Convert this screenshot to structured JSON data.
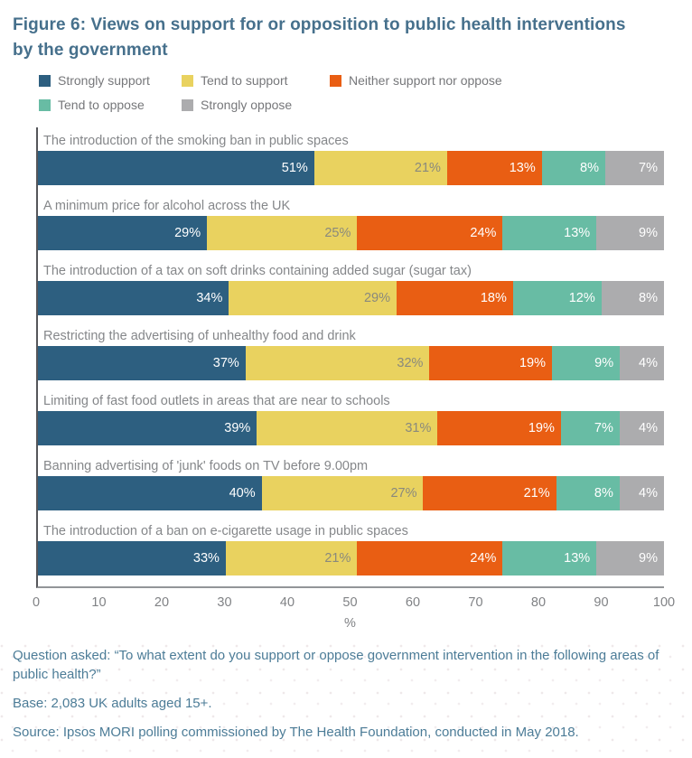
{
  "figure": {
    "title_lines": [
      "Figure 6: Views on support for or opposition to public health interventions",
      "by the government"
    ]
  },
  "chart_data": {
    "type": "bar",
    "stacked": true,
    "orientation": "horizontal",
    "title": "Figure 6: Views on support for or opposition to public health interventions by the government",
    "categories": [
      "The introduction of the smoking ban in public spaces",
      "A minimum price for alcohol across the UK",
      "The introduction of a tax on soft drinks containing added sugar (sugar tax)",
      "Restricting the advertising of unhealthy food and drink",
      "Limiting of fast food outlets in areas that are near to schools",
      "Banning advertising of 'junk' foods on TV before 9.00pm",
      "The introduction of a ban on e-cigarette usage in public spaces"
    ],
    "series": [
      {
        "name": "Strongly support",
        "color": "#2D5F80",
        "label_color": "#FFFFFF",
        "values": [
          51,
          29,
          34,
          37,
          39,
          40,
          33
        ]
      },
      {
        "name": "Tend to support",
        "color": "#E9D25F",
        "label_color": "#89897D",
        "values": [
          21,
          25,
          29,
          32,
          31,
          27,
          21
        ]
      },
      {
        "name": "Neither support nor oppose",
        "color": "#E95E13",
        "label_color": "#FFFFFF",
        "values": [
          13,
          24,
          18,
          19,
          19,
          21,
          24
        ]
      },
      {
        "name": "Tend to oppose",
        "color": "#68BCA4",
        "label_color": "#FFFFFF",
        "values": [
          8,
          13,
          12,
          9,
          7,
          8,
          13
        ]
      },
      {
        "name": "Strongly oppose",
        "color": "#ACACAE",
        "label_color": "#FFFFFF",
        "values": [
          7,
          9,
          8,
          4,
          4,
          4,
          9
        ]
      }
    ],
    "value_suffix": "%",
    "xticks": [
      0,
      10,
      20,
      30,
      40,
      50,
      60,
      70,
      80,
      90,
      100
    ],
    "xlim": [
      0,
      100
    ],
    "xlabel": "%",
    "legend_position": "top",
    "grid": false
  },
  "footer": {
    "question": "Question asked: “To what extent do you support or oppose government intervention in the following areas of public health?”",
    "base": "Base: 2,083 UK adults aged 15+.",
    "source": "Source: Ipsos MORI polling commissioned by The Health Foundation, conducted in May 2018."
  },
  "colors": {
    "title": "#46708C",
    "footer_text": "#4C7C97",
    "category_label": "#85878A",
    "axis_text": "#808285"
  }
}
